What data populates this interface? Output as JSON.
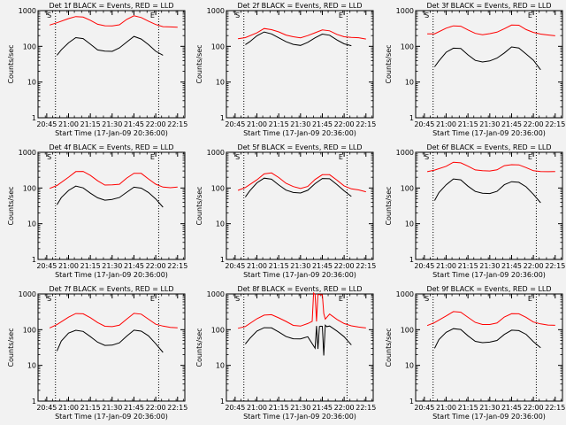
{
  "figure": {
    "background": "#f2f2f2",
    "event_color": "#000000",
    "lld_color": "#ff0000"
  },
  "chart_data": [
    {
      "type": "line",
      "title": "Det 1f BLACK = Events, RED = LLD",
      "xlabel": "Start Time (17-Jan-09 20:36:00)",
      "ylabel": "Counts/sec",
      "xticks": [
        "20:45",
        "21:00",
        "21:15",
        "21:30",
        "21:45",
        "22:00",
        "22:15"
      ],
      "yticks": [
        "1",
        "10",
        "100",
        "1000"
      ],
      "ylim": [
        1,
        1000
      ],
      "yscale": "log",
      "markers": [
        "S",
        "E"
      ],
      "series": [
        {
          "name": "Events",
          "color": "#000000",
          "x": [
            "20:52",
            "20:55",
            "21:00",
            "21:05",
            "21:10",
            "21:15",
            "21:20",
            "21:25",
            "21:30",
            "21:35",
            "21:40",
            "21:45",
            "21:50",
            "21:55",
            "22:00",
            "22:05"
          ],
          "values": [
            60,
            80,
            130,
            180,
            170,
            120,
            80,
            70,
            70,
            90,
            130,
            180,
            160,
            110,
            75,
            60
          ]
        },
        {
          "name": "LLD",
          "color": "#ff0000",
          "x": [
            "20:47",
            "20:52",
            "21:00",
            "21:05",
            "21:10",
            "21:15",
            "21:20",
            "21:25",
            "21:30",
            "21:35",
            "21:40",
            "21:45",
            "21:50",
            "21:55",
            "22:00",
            "22:05",
            "22:10",
            "22:15"
          ],
          "values": [
            420,
            460,
            620,
            700,
            680,
            560,
            420,
            360,
            360,
            400,
            560,
            680,
            640,
            500,
            420,
            380,
            360,
            360
          ]
        }
      ]
    },
    {
      "type": "line",
      "title": "Det 2f BLACK = Events, RED = LLD",
      "xlabel": "Start Time (17-Jan-09 20:36:00)",
      "ylabel": "Counts/sec",
      "xticks": [
        "20:45",
        "21:00",
        "21:15",
        "21:30",
        "21:45",
        "22:00",
        "22:15"
      ],
      "yticks": [
        "1",
        "10",
        "100",
        "1000"
      ],
      "ylim": [
        1,
        1000
      ],
      "yscale": "log",
      "markers": [
        "S",
        "E"
      ],
      "series": [
        {
          "name": "Events",
          "color": "#000000",
          "x": [
            "20:52",
            "20:55",
            "21:00",
            "21:05",
            "21:10",
            "21:15",
            "21:20",
            "21:25",
            "21:30",
            "21:35",
            "21:40",
            "21:45",
            "21:50",
            "21:55",
            "22:00",
            "22:05"
          ],
          "values": [
            110,
            130,
            190,
            240,
            220,
            170,
            130,
            110,
            110,
            130,
            180,
            230,
            210,
            160,
            120,
            100
          ]
        },
        {
          "name": "LLD",
          "color": "#ff0000",
          "x": [
            "20:47",
            "20:52",
            "21:00",
            "21:05",
            "21:10",
            "21:15",
            "21:20",
            "21:25",
            "21:30",
            "21:35",
            "21:40",
            "21:45",
            "21:50",
            "21:55",
            "22:00",
            "22:05",
            "22:10",
            "22:15"
          ],
          "values": [
            160,
            170,
            230,
            300,
            290,
            250,
            200,
            180,
            180,
            200,
            250,
            300,
            280,
            230,
            190,
            170,
            165,
            160
          ]
        }
      ]
    },
    {
      "type": "line",
      "title": "Det 3f BLACK = Events, RED = LLD",
      "xlabel": "Start Time (17-Jan-09 20:36:00)",
      "ylabel": "Counts/sec",
      "xticks": [
        "20:45",
        "21:00",
        "21:15",
        "21:30",
        "21:45",
        "22:00",
        "22:15"
      ],
      "yticks": [
        "1",
        "10",
        "100",
        "1000"
      ],
      "ylim": [
        1,
        1000
      ],
      "yscale": "log",
      "markers": [
        "S",
        "E"
      ],
      "series": [
        {
          "name": "Events",
          "color": "#000000",
          "x": [
            "20:52",
            "20:55",
            "21:00",
            "21:05",
            "21:10",
            "21:15",
            "21:20",
            "21:25",
            "21:30",
            "21:35",
            "21:40",
            "21:45",
            "21:50",
            "21:55",
            "22:00",
            "22:05"
          ],
          "values": [
            25,
            40,
            70,
            95,
            90,
            60,
            42,
            38,
            38,
            45,
            65,
            95,
            85,
            60,
            40,
            22
          ]
        },
        {
          "name": "LLD",
          "color": "#ff0000",
          "x": [
            "20:47",
            "20:52",
            "21:00",
            "21:05",
            "21:10",
            "21:15",
            "21:20",
            "21:25",
            "21:30",
            "21:35",
            "21:40",
            "21:45",
            "21:50",
            "21:55",
            "22:00",
            "22:05",
            "22:10",
            "22:15"
          ],
          "values": [
            210,
            230,
            330,
            400,
            380,
            300,
            240,
            220,
            220,
            240,
            310,
            390,
            370,
            290,
            240,
            220,
            215,
            210
          ]
        }
      ]
    },
    {
      "type": "line",
      "title": "Det 4f BLACK = Events, RED = LLD",
      "xlabel": "Start Time (17-Jan-09 20:36:00)",
      "ylabel": "Counts/sec",
      "xticks": [
        "20:45",
        "21:00",
        "21:15",
        "21:30",
        "21:45",
        "22:00",
        "22:15"
      ],
      "yticks": [
        "1",
        "10",
        "100",
        "1000"
      ],
      "ylim": [
        1,
        1000
      ],
      "yscale": "log",
      "markers": [
        "S",
        "E"
      ],
      "series": [
        {
          "name": "Events",
          "color": "#000000",
          "x": [
            "20:52",
            "20:55",
            "21:00",
            "21:05",
            "21:10",
            "21:15",
            "21:20",
            "21:25",
            "21:30",
            "21:35",
            "21:40",
            "21:45",
            "21:50",
            "21:55",
            "22:00",
            "22:05"
          ],
          "values": [
            35,
            55,
            85,
            110,
            100,
            70,
            50,
            45,
            45,
            55,
            80,
            110,
            100,
            75,
            50,
            30
          ]
        },
        {
          "name": "LLD",
          "color": "#ff0000",
          "x": [
            "20:47",
            "20:52",
            "21:00",
            "21:05",
            "21:10",
            "21:15",
            "21:20",
            "21:25",
            "21:30",
            "21:35",
            "21:40",
            "21:45",
            "21:50",
            "21:55",
            "22:00",
            "22:05",
            "22:10",
            "22:15"
          ],
          "values": [
            100,
            120,
            200,
            280,
            290,
            220,
            150,
            120,
            115,
            130,
            200,
            270,
            260,
            180,
            130,
            110,
            105,
            100
          ]
        }
      ]
    },
    {
      "type": "line",
      "title": "Det 5f BLACK = Events, RED = LLD",
      "xlabel": "Start Time (17-Jan-09 20:36:00)",
      "ylabel": "Counts/sec",
      "xticks": [
        "20:45",
        "21:00",
        "21:15",
        "21:30",
        "21:45",
        "22:00",
        "22:15"
      ],
      "yticks": [
        "1",
        "10",
        "100",
        "1000"
      ],
      "ylim": [
        1,
        1000
      ],
      "yscale": "log",
      "markers": [
        "S",
        "E"
      ],
      "series": [
        {
          "name": "Events",
          "color": "#000000",
          "x": [
            "20:52",
            "20:55",
            "21:00",
            "21:05",
            "21:10",
            "21:15",
            "21:20",
            "21:25",
            "21:30",
            "21:35",
            "21:40",
            "21:45",
            "21:50",
            "21:55",
            "22:00",
            "22:05"
          ],
          "values": [
            55,
            80,
            140,
            190,
            180,
            130,
            90,
            75,
            75,
            90,
            130,
            180,
            170,
            120,
            80,
            55
          ]
        },
        {
          "name": "LLD",
          "color": "#ff0000",
          "x": [
            "20:47",
            "20:52",
            "21:00",
            "21:05",
            "21:10",
            "21:15",
            "21:20",
            "21:25",
            "21:30",
            "21:35",
            "21:40",
            "21:45",
            "21:50",
            "21:55",
            "22:00",
            "22:05",
            "22:10",
            "22:15"
          ],
          "values": [
            85,
            100,
            170,
            250,
            270,
            210,
            140,
            110,
            100,
            115,
            170,
            230,
            220,
            160,
            110,
            90,
            85,
            80
          ]
        }
      ]
    },
    {
      "type": "line",
      "title": "Det 6f BLACK = Events, RED = LLD",
      "xlabel": "Start Time (17-Jan-09 20:36:00)",
      "ylabel": "Counts/sec",
      "xticks": [
        "20:45",
        "21:00",
        "21:15",
        "21:30",
        "21:45",
        "22:00",
        "22:15"
      ],
      "yticks": [
        "1",
        "10",
        "100",
        "1000"
      ],
      "ylim": [
        1,
        1000
      ],
      "yscale": "log",
      "markers": [
        "S",
        "E"
      ],
      "series": [
        {
          "name": "Events",
          "color": "#000000",
          "x": [
            "20:52",
            "20:55",
            "21:00",
            "21:05",
            "21:10",
            "21:15",
            "21:20",
            "21:25",
            "21:30",
            "21:35",
            "21:40",
            "21:45",
            "21:50",
            "21:55",
            "22:00",
            "22:05"
          ],
          "values": [
            45,
            75,
            130,
            170,
            160,
            110,
            80,
            70,
            70,
            80,
            120,
            160,
            150,
            110,
            70,
            40
          ]
        },
        {
          "name": "LLD",
          "color": "#ff0000",
          "x": [
            "20:47",
            "20:52",
            "21:00",
            "21:05",
            "21:10",
            "21:15",
            "21:20",
            "21:25",
            "21:30",
            "21:35",
            "21:40",
            "21:45",
            "21:50",
            "21:55",
            "22:00",
            "22:05",
            "22:10",
            "22:15"
          ],
          "values": [
            290,
            320,
            430,
            500,
            480,
            400,
            320,
            300,
            300,
            320,
            410,
            480,
            460,
            380,
            320,
            300,
            295,
            290
          ]
        }
      ]
    },
    {
      "type": "line",
      "title": "Det 7f BLACK = Events, RED = LLD",
      "xlabel": "Start Time (17-Jan-09 20:36:00)",
      "ylabel": "Counts/sec",
      "xticks": [
        "20:45",
        "21:00",
        "21:15",
        "21:30",
        "21:45",
        "22:00",
        "22:15"
      ],
      "yticks": [
        "1",
        "10",
        "100",
        "1000"
      ],
      "ylim": [
        1,
        1000
      ],
      "yscale": "log",
      "markers": [
        "S",
        "E"
      ],
      "series": [
        {
          "name": "Events",
          "color": "#000000",
          "x": [
            "20:52",
            "20:55",
            "21:00",
            "21:05",
            "21:10",
            "21:15",
            "21:20",
            "21:25",
            "21:30",
            "21:35",
            "21:40",
            "21:45",
            "21:50",
            "21:55",
            "22:00",
            "22:05"
          ],
          "values": [
            25,
            45,
            75,
            95,
            90,
            65,
            45,
            38,
            38,
            45,
            70,
            95,
            90,
            65,
            40,
            22
          ]
        },
        {
          "name": "LLD",
          "color": "#ff0000",
          "x": [
            "20:47",
            "20:52",
            "21:00",
            "21:05",
            "21:10",
            "21:15",
            "21:20",
            "21:25",
            "21:30",
            "21:35",
            "21:40",
            "21:45",
            "21:50",
            "21:55",
            "22:00",
            "22:05",
            "22:10",
            "22:15"
          ],
          "values": [
            110,
            130,
            210,
            280,
            280,
            220,
            160,
            130,
            125,
            140,
            210,
            280,
            270,
            190,
            140,
            120,
            115,
            110
          ]
        }
      ]
    },
    {
      "type": "line",
      "title": "Det 8f BLACK = Events, RED = LLD",
      "xlabel": "Start Time (17-Jan-09 20:36:00)",
      "ylabel": "Counts/sec",
      "xticks": [
        "20:45",
        "21:00",
        "21:15",
        "21:30",
        "21:45",
        "22:00",
        "22:15"
      ],
      "yticks": [
        "1",
        "10",
        "100",
        "1000"
      ],
      "ylim": [
        1,
        1000
      ],
      "yscale": "log",
      "markers": [
        "S",
        "E"
      ],
      "series": [
        {
          "name": "Events",
          "color": "#000000",
          "x": [
            "20:52",
            "20:55",
            "21:00",
            "21:05",
            "21:10",
            "21:15",
            "21:20",
            "21:25",
            "21:30",
            "21:35",
            "21:40",
            "21:41",
            "21:42",
            "21:43",
            "21:44",
            "21:45",
            "21:46",
            "21:47",
            "21:48",
            "21:50",
            "21:55",
            "22:00",
            "22:05"
          ],
          "values": [
            40,
            60,
            95,
            120,
            115,
            85,
            60,
            55,
            55,
            60,
            30,
            120,
            30,
            130,
            130,
            130,
            20,
            140,
            130,
            120,
            90,
            60,
            35
          ]
        },
        {
          "name": "LLD",
          "color": "#ff0000",
          "x": [
            "20:47",
            "20:52",
            "21:00",
            "21:05",
            "21:10",
            "21:15",
            "21:20",
            "21:25",
            "21:30",
            "21:35",
            "21:38",
            "21:39",
            "21:40",
            "21:41",
            "21:42",
            "21:43",
            "21:45",
            "21:46",
            "21:47",
            "21:50",
            "21:55",
            "22:00",
            "22:05",
            "22:10",
            "22:15"
          ],
          "values": [
            110,
            130,
            210,
            270,
            270,
            210,
            160,
            130,
            125,
            140,
            170,
            1000,
            1000,
            180,
            1000,
            1000,
            1000,
            300,
            210,
            260,
            190,
            140,
            120,
            115,
            110
          ]
        }
      ]
    },
    {
      "type": "line",
      "title": "Det 9f BLACK = Events, RED = LLD",
      "xlabel": "Start Time (17-Jan-09 20:36:00)",
      "ylabel": "Counts/sec",
      "xticks": [
        "20:45",
        "21:00",
        "21:15",
        "21:30",
        "21:45",
        "22:00",
        "22:15"
      ],
      "yticks": [
        "1",
        "10",
        "100",
        "1000"
      ],
      "ylim": [
        1,
        1000
      ],
      "yscale": "log",
      "markers": [
        "S",
        "E"
      ],
      "series": [
        {
          "name": "Events",
          "color": "#000000",
          "x": [
            "20:52",
            "20:55",
            "21:00",
            "21:05",
            "21:10",
            "21:15",
            "21:20",
            "21:25",
            "21:30",
            "21:35",
            "21:40",
            "21:45",
            "21:50",
            "21:55",
            "22:00",
            "22:05"
          ],
          "values": [
            30,
            50,
            80,
            100,
            95,
            70,
            50,
            45,
            45,
            52,
            75,
            100,
            95,
            70,
            45,
            30
          ]
        },
        {
          "name": "LLD",
          "color": "#ff0000",
          "x": [
            "20:47",
            "20:52",
            "21:00",
            "21:05",
            "21:10",
            "21:15",
            "21:20",
            "21:25",
            "21:30",
            "21:35",
            "21:40",
            "21:45",
            "21:50",
            "21:55",
            "22:00",
            "22:05",
            "22:10",
            "22:15"
          ],
          "values": [
            130,
            150,
            230,
            300,
            290,
            230,
            170,
            145,
            140,
            160,
            230,
            290,
            280,
            210,
            160,
            140,
            135,
            130
          ]
        }
      ]
    }
  ]
}
